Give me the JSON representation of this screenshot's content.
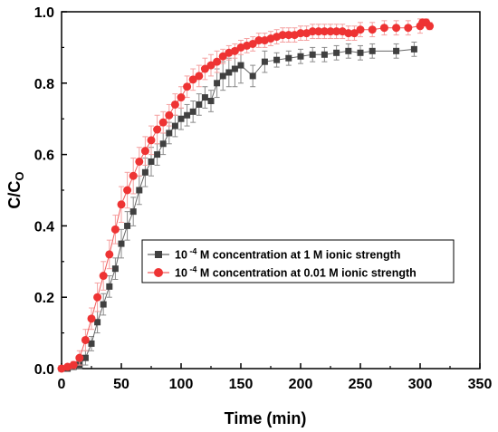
{
  "chart_data": {
    "type": "scatter",
    "xlabel": "Time (min)",
    "ylabel_main": "C/C",
    "ylabel_sub": "O",
    "xlim": [
      0,
      350
    ],
    "ylim": [
      0,
      1.0
    ],
    "xticks": [
      "0",
      "50",
      "100",
      "150",
      "200",
      "250",
      "300",
      "350"
    ],
    "yticks": [
      "0.0",
      "0.2",
      "0.4",
      "0.6",
      "0.8",
      "1.0"
    ],
    "xtick_values": [
      0,
      50,
      100,
      150,
      200,
      250,
      300,
      350
    ],
    "ytick_values": [
      0,
      0.2,
      0.4,
      0.6,
      0.8,
      1.0
    ],
    "grid": false,
    "legend_placement": "center-right",
    "series": [
      {
        "marker": "square",
        "color": "#404040",
        "legend_prefix": "10",
        "legend_exp": "-4",
        "legend_suffix": " M concentration at 1 M ionic strength",
        "x": [
          0,
          5,
          10,
          15,
          20,
          25,
          30,
          35,
          40,
          45,
          50,
          55,
          60,
          65,
          70,
          75,
          80,
          85,
          90,
          95,
          100,
          105,
          110,
          115,
          120,
          125,
          130,
          135,
          140,
          145,
          150,
          160,
          170,
          180,
          190,
          200,
          210,
          220,
          230,
          240,
          250,
          260,
          280,
          295
        ],
        "y": [
          0.0,
          0.0,
          0.005,
          0.01,
          0.03,
          0.07,
          0.13,
          0.18,
          0.23,
          0.28,
          0.35,
          0.4,
          0.44,
          0.5,
          0.55,
          0.58,
          0.6,
          0.63,
          0.66,
          0.68,
          0.7,
          0.71,
          0.72,
          0.74,
          0.76,
          0.75,
          0.8,
          0.82,
          0.83,
          0.84,
          0.85,
          0.82,
          0.86,
          0.865,
          0.87,
          0.875,
          0.88,
          0.88,
          0.885,
          0.89,
          0.885,
          0.89,
          0.89,
          0.895
        ],
        "err": [
          0,
          0,
          0.005,
          0.01,
          0.02,
          0.02,
          0.03,
          0.03,
          0.03,
          0.03,
          0.04,
          0.04,
          0.04,
          0.04,
          0.04,
          0.04,
          0.03,
          0.03,
          0.03,
          0.03,
          0.03,
          0.03,
          0.03,
          0.03,
          0.03,
          0.03,
          0.04,
          0.04,
          0.04,
          0.05,
          0.05,
          0.03,
          0.03,
          0.02,
          0.02,
          0.02,
          0.02,
          0.02,
          0.02,
          0.02,
          0.02,
          0.02,
          0.02,
          0.02
        ]
      },
      {
        "marker": "circle",
        "color": "#ee3333",
        "legend_prefix": "10",
        "legend_exp": "-4",
        "legend_suffix": " M concentration at 0.01 M ionic strength",
        "x": [
          0,
          5,
          10,
          15,
          20,
          25,
          30,
          35,
          40,
          45,
          50,
          55,
          60,
          65,
          70,
          75,
          80,
          85,
          90,
          95,
          100,
          105,
          110,
          115,
          120,
          125,
          130,
          135,
          140,
          145,
          150,
          155,
          160,
          165,
          170,
          175,
          180,
          185,
          190,
          195,
          200,
          205,
          210,
          215,
          220,
          225,
          230,
          235,
          240,
          245,
          250,
          260,
          270,
          280,
          290,
          300,
          302,
          305,
          308
        ],
        "y": [
          0.0,
          0.005,
          0.01,
          0.03,
          0.08,
          0.14,
          0.2,
          0.26,
          0.32,
          0.39,
          0.46,
          0.5,
          0.54,
          0.58,
          0.61,
          0.64,
          0.67,
          0.69,
          0.71,
          0.74,
          0.76,
          0.79,
          0.81,
          0.82,
          0.84,
          0.85,
          0.86,
          0.875,
          0.885,
          0.89,
          0.9,
          0.905,
          0.91,
          0.92,
          0.92,
          0.925,
          0.93,
          0.935,
          0.935,
          0.935,
          0.94,
          0.94,
          0.945,
          0.945,
          0.945,
          0.945,
          0.945,
          0.945,
          0.94,
          0.94,
          0.95,
          0.95,
          0.955,
          0.955,
          0.955,
          0.96,
          0.97,
          0.97,
          0.96
        ],
        "err": [
          0,
          0.005,
          0.01,
          0.02,
          0.03,
          0.03,
          0.04,
          0.04,
          0.04,
          0.04,
          0.05,
          0.05,
          0.05,
          0.04,
          0.04,
          0.04,
          0.04,
          0.03,
          0.03,
          0.03,
          0.03,
          0.03,
          0.03,
          0.03,
          0.03,
          0.03,
          0.03,
          0.02,
          0.02,
          0.02,
          0.02,
          0.02,
          0.02,
          0.02,
          0.02,
          0.02,
          0.02,
          0.02,
          0.02,
          0.02,
          0.02,
          0.02,
          0.02,
          0.02,
          0.02,
          0.02,
          0.02,
          0.02,
          0.02,
          0.02,
          0.02,
          0.02,
          0.02,
          0.02,
          0.02,
          0.02,
          0.01,
          0.01,
          0.01
        ]
      }
    ]
  }
}
